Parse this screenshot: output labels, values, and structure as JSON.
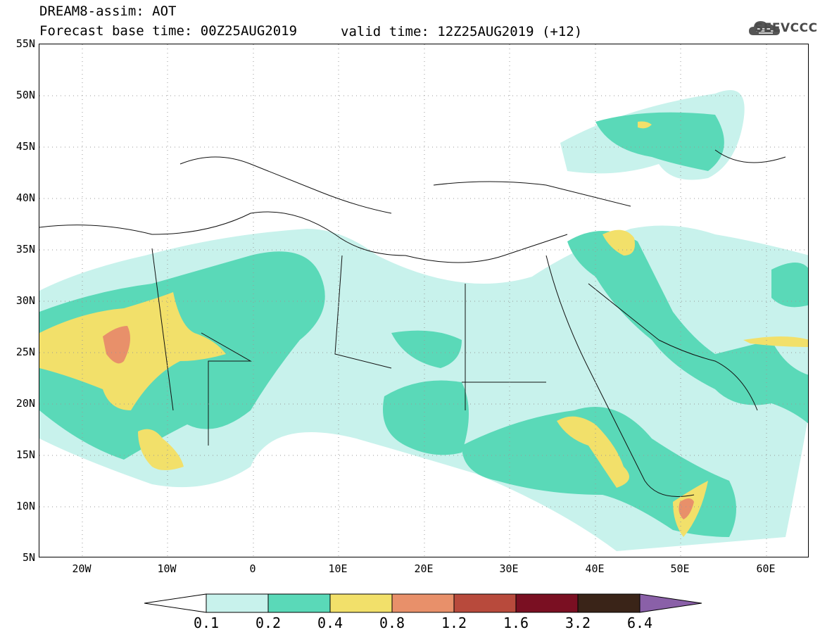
{
  "title": {
    "line1": "DREAM8-assim: AOT",
    "line2_left": "Forecast base time: 00Z25AUG2019",
    "line2_right": "valid time: 12Z25AUG2019 (+12)"
  },
  "logo": {
    "text": "SEEVCCC",
    "icon": "cloud-icon"
  },
  "map": {
    "projection": "lat-lon",
    "lon_range": [
      -25,
      65
    ],
    "lat_range": [
      5,
      55
    ],
    "grid": "dotted",
    "lat_labels": [
      "55N",
      "50N",
      "45N",
      "40N",
      "35N",
      "30N",
      "25N",
      "20N",
      "15N",
      "10N",
      "5N"
    ],
    "lon_labels": [
      "20W",
      "10W",
      "0",
      "10E",
      "20E",
      "30E",
      "40E",
      "50E",
      "60E"
    ]
  },
  "colorbar": {
    "colors": [
      "#c8f2ec",
      "#5ad9b8",
      "#f2e06a",
      "#e8906a",
      "#b84a3c",
      "#7a0f22",
      "#3a2418",
      "#8a60a8"
    ],
    "labels": [
      "0.1",
      "0.2",
      "0.4",
      "0.8",
      "1.2",
      "1.6",
      "3.2",
      "6.4"
    ],
    "extend": "both"
  }
}
